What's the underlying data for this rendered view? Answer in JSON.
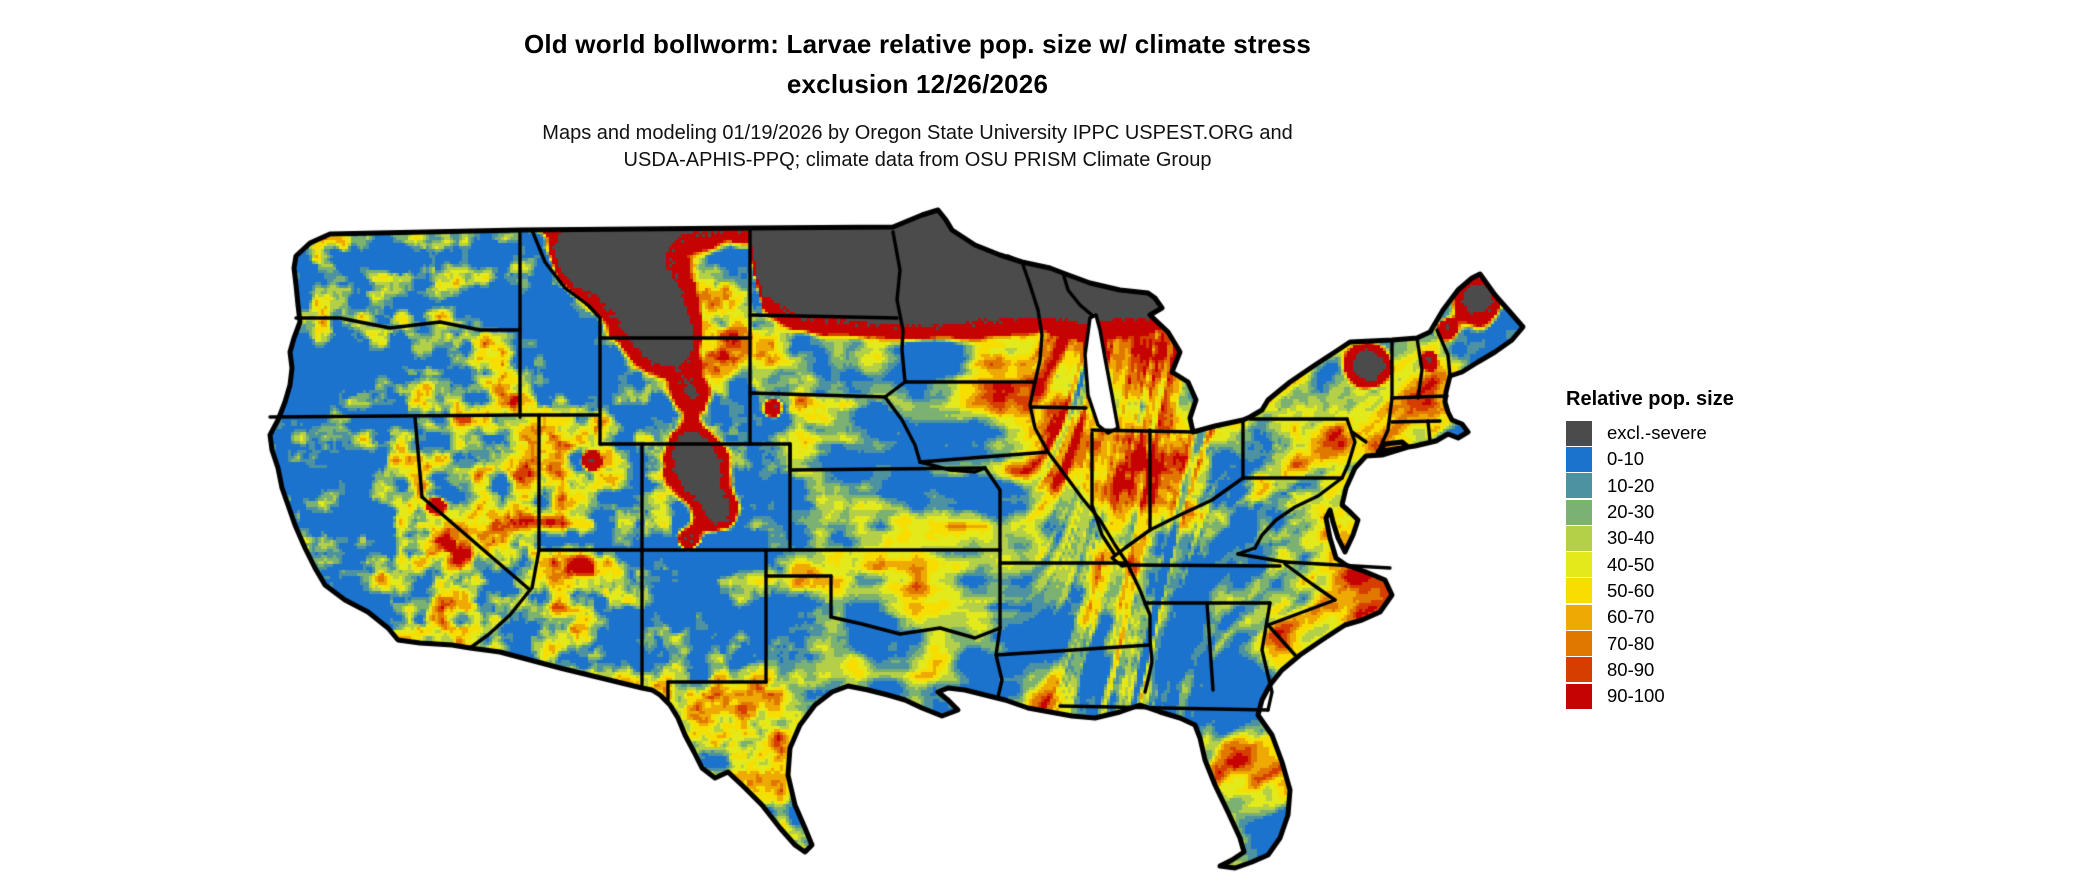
{
  "title": {
    "line1": "Old world bollworm: Larvae relative pop. size w/ climate stress",
    "line2": "exclusion 12/26/2026"
  },
  "subtitle": {
    "line1": "Maps and modeling 01/19/2026 by Oregon State University IPPC USPEST.ORG and",
    "line2": "USDA-APHIS-PPQ; climate data from OSU PRISM Climate Group"
  },
  "legend": {
    "title": "Relative pop. size",
    "items": [
      {
        "label": "excl.-severe",
        "color": "#4B4B4B"
      },
      {
        "label": "0-10",
        "color": "#1C73CD"
      },
      {
        "label": "10-20",
        "color": "#4C92A0"
      },
      {
        "label": "20-30",
        "color": "#7BB171"
      },
      {
        "label": "30-40",
        "color": "#B4CF48"
      },
      {
        "label": "40-50",
        "color": "#E2EA1C"
      },
      {
        "label": "50-60",
        "color": "#F7DE00"
      },
      {
        "label": "60-70",
        "color": "#EEA904"
      },
      {
        "label": "70-80",
        "color": "#E07800"
      },
      {
        "label": "80-90",
        "color": "#D63E00"
      },
      {
        "label": "90-100",
        "color": "#C60303"
      }
    ]
  },
  "map": {
    "region": "Contiguous United States",
    "background_color": "#FFFFFF",
    "border_color": "#000000",
    "water_color": "#FFFFFF",
    "excluded_color": "#4B4B4B"
  }
}
